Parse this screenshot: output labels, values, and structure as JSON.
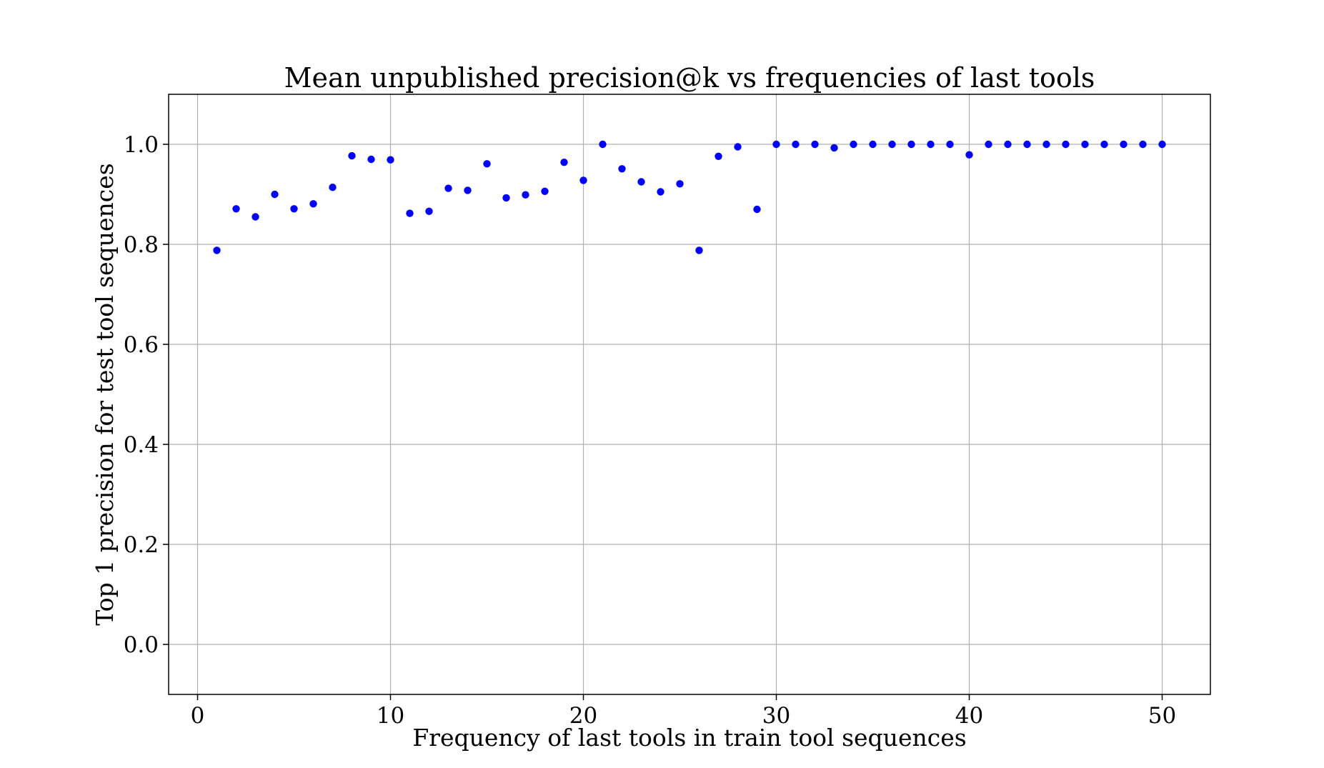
{
  "chart_data": {
    "type": "scatter",
    "title": "Mean unpublished precision@k vs frequencies of last tools",
    "xlabel": "Frequency of last tools in train tool sequences",
    "ylabel": "Top 1 precision for test tool sequences",
    "xlim": [
      -1.5,
      52.5
    ],
    "ylim": [
      -0.1,
      1.1
    ],
    "xticks": [
      0,
      10,
      20,
      30,
      40,
      50
    ],
    "xtick_labels": [
      "0",
      "10",
      "20",
      "30",
      "40",
      "50"
    ],
    "yticks": [
      0.0,
      0.2,
      0.4,
      0.6,
      0.8,
      1.0
    ],
    "ytick_labels": [
      "0.0",
      "0.2",
      "0.4",
      "0.6",
      "0.8",
      "1.0"
    ],
    "grid": true,
    "marker_color": "#0000ff",
    "x": [
      1,
      2,
      3,
      4,
      5,
      6,
      7,
      8,
      9,
      10,
      11,
      12,
      13,
      14,
      15,
      16,
      17,
      18,
      19,
      20,
      21,
      22,
      23,
      24,
      25,
      26,
      27,
      28,
      29,
      30,
      31,
      32,
      33,
      34,
      35,
      36,
      37,
      38,
      39,
      40,
      41,
      42,
      43,
      44,
      45,
      46,
      47,
      48,
      49,
      50
    ],
    "y": [
      0.788,
      0.871,
      0.855,
      0.9,
      0.871,
      0.881,
      0.914,
      0.977,
      0.97,
      0.969,
      0.862,
      0.866,
      0.912,
      0.908,
      0.961,
      0.893,
      0.899,
      0.906,
      0.964,
      0.928,
      1.0,
      0.951,
      0.925,
      0.905,
      0.921,
      0.788,
      0.976,
      0.995,
      0.87,
      1.0,
      1.0,
      1.0,
      0.993,
      1.0,
      1.0,
      1.0,
      1.0,
      1.0,
      1.0,
      0.979,
      1.0,
      1.0,
      1.0,
      1.0,
      1.0,
      1.0,
      1.0,
      1.0,
      1.0,
      1.0
    ]
  }
}
